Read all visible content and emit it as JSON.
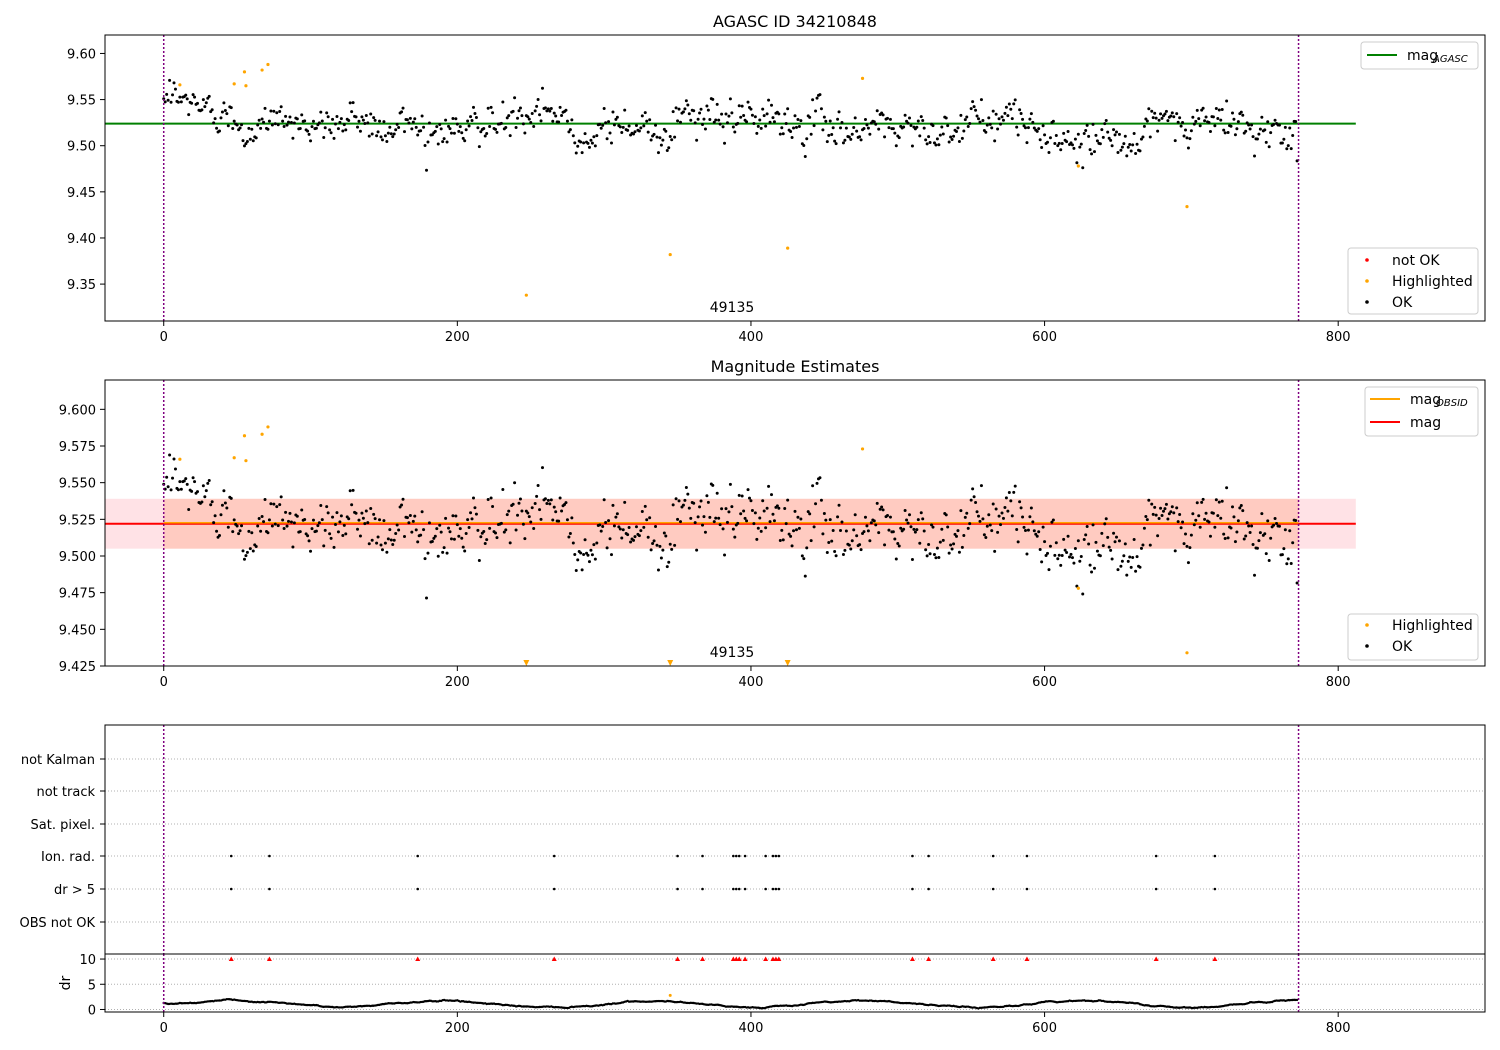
{
  "colors": {
    "ok": "#000000",
    "highlighted": "#ffa500",
    "not_ok": "#ff0000",
    "agasc_line": "#008000",
    "mag_line": "#ff0000",
    "band": "#ffb6c1",
    "band_inner": "#ffa07a",
    "vline": "#800080",
    "grid": "#b0b0b0"
  },
  "chart_data": [
    {
      "id": "agasc",
      "type": "scatter",
      "title": "AGASC ID 34210848",
      "xlim": [
        -40,
        900
      ],
      "ylim": [
        9.31,
        9.62
      ],
      "xticks": [
        0,
        200,
        400,
        600,
        800
      ],
      "yticks": [
        9.35,
        9.4,
        9.45,
        9.5,
        9.55,
        9.6
      ],
      "xtick_labels": [
        "0",
        "200",
        "400",
        "600",
        "800"
      ],
      "ytick_labels": [
        "9.35",
        "9.40",
        "9.45",
        "9.50",
        "9.55",
        "9.60"
      ],
      "vlines": [
        0,
        773
      ],
      "annotation": "49135",
      "annotation_x": 386,
      "hline": {
        "value": 9.524,
        "xmin": -40,
        "xmax": 812
      },
      "legend_lines": [
        {
          "label": "mag",
          "sub": "AGASC"
        }
      ],
      "legend_points": [
        "not OK",
        "Highlighted",
        "OK"
      ],
      "legend_lines_position": "upper right",
      "legend_points_position": "lower right",
      "ok_series": {
        "n": 773,
        "center": 9.524,
        "noise": 0.012
      },
      "highlighted": [
        [
          11,
          9.566
        ],
        [
          48,
          9.567
        ],
        [
          55,
          9.58
        ],
        [
          56,
          9.565
        ],
        [
          67,
          9.582
        ],
        [
          71,
          9.588
        ],
        [
          247,
          9.338
        ],
        [
          345,
          9.382
        ],
        [
          425,
          9.389
        ],
        [
          476,
          9.573
        ],
        [
          623,
          9.478
        ],
        [
          697,
          9.434
        ]
      ]
    },
    {
      "id": "estimates",
      "type": "scatter",
      "title": "Magnitude Estimates",
      "xlim": [
        -40,
        900
      ],
      "ylim": [
        9.425,
        9.62
      ],
      "xticks": [
        0,
        200,
        400,
        600,
        800
      ],
      "yticks": [
        9.425,
        9.45,
        9.475,
        9.5,
        9.525,
        9.55,
        9.575,
        9.6
      ],
      "xtick_labels": [
        "0",
        "200",
        "400",
        "600",
        "800"
      ],
      "ytick_labels": [
        "9.425",
        "9.450",
        "9.475",
        "9.500",
        "9.525",
        "9.550",
        "9.575",
        "9.600"
      ],
      "vlines": [
        0,
        773
      ],
      "annotation": "49135",
      "annotation_x": 386,
      "mag_line": {
        "value": 9.522,
        "xmin": -40,
        "xmax": 812
      },
      "band": {
        "low": 9.505,
        "high": 9.539,
        "xmin": -40,
        "xmax": 812
      },
      "band_inner": {
        "low": 9.505,
        "high": 9.539,
        "xmin": 0,
        "xmax": 773
      },
      "legend_lines": [
        {
          "label": "mag",
          "sub": "OBSID"
        },
        {
          "label": "mag",
          "sub": ""
        }
      ],
      "legend_points": [
        "Highlighted",
        "OK"
      ],
      "legend_lines_position": "upper right",
      "legend_points_position": "lower right",
      "ok_series": {
        "n": 773,
        "center": 9.522,
        "noise": 0.012
      },
      "highlighted": [
        [
          11,
          9.566
        ],
        [
          48,
          9.567
        ],
        [
          55,
          9.582
        ],
        [
          56,
          9.565
        ],
        [
          67,
          9.583
        ],
        [
          71,
          9.588
        ],
        [
          476,
          9.573
        ],
        [
          623,
          9.478
        ],
        [
          697,
          9.434
        ]
      ],
      "clipped_markers": [
        247,
        345,
        425
      ]
    },
    {
      "id": "flags",
      "type": "scatter",
      "title": "",
      "xlim": [
        -40,
        900
      ],
      "vlines": [
        0,
        773
      ],
      "categories": [
        "not Kalman",
        "not track",
        "Sat. pixel.",
        "Ion. rad.",
        "dr > 5",
        "OBS not OK"
      ],
      "points": {
        "Ion. rad.": [
          46,
          72,
          173,
          266,
          350,
          367,
          388,
          390,
          392,
          396,
          410,
          415,
          417,
          419,
          510,
          521,
          565,
          588,
          676,
          716
        ],
        "dr > 5": [
          46,
          72,
          173,
          266,
          350,
          367,
          388,
          390,
          392,
          396,
          410,
          415,
          417,
          419,
          510,
          521,
          565,
          588,
          676,
          716
        ]
      }
    },
    {
      "id": "dr",
      "type": "scatter",
      "title": "",
      "ylabel": "dr",
      "xlim": [
        -40,
        900
      ],
      "ylim": [
        -0.5,
        11
      ],
      "xticks": [
        0,
        200,
        400,
        600,
        800
      ],
      "yticks": [
        0,
        5,
        10
      ],
      "xtick_labels": [
        "0",
        "200",
        "400",
        "600",
        "800"
      ],
      "ytick_labels": [
        "0",
        "5",
        "10"
      ],
      "vlines": [
        0,
        773
      ],
      "clip_level": 10,
      "clipped_markers": [
        46,
        72,
        173,
        266,
        350,
        367,
        388,
        390,
        392,
        396,
        410,
        415,
        417,
        419,
        510,
        521,
        565,
        588,
        676,
        716
      ],
      "highlighted": [
        [
          345,
          2.8
        ]
      ],
      "ok_series": {
        "n": 773
      }
    }
  ]
}
